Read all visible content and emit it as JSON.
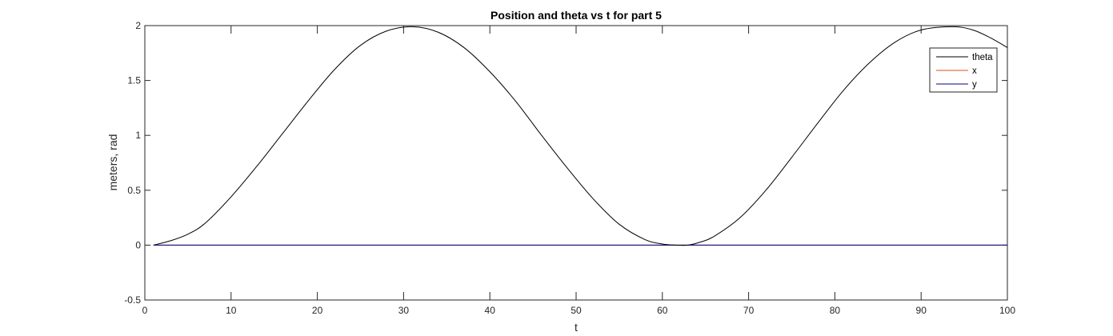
{
  "chart_data": {
    "type": "line",
    "title": "Position and theta vs t for part 5",
    "xlabel": "t",
    "ylabel": "meters, rad",
    "xlim": [
      0,
      100
    ],
    "ylim": [
      -0.5,
      2
    ],
    "xticks": [
      0,
      10,
      20,
      30,
      40,
      50,
      60,
      70,
      80,
      90,
      100
    ],
    "xtick_labels": [
      "0",
      "10",
      "20",
      "30",
      "40",
      "50",
      "60",
      "70",
      "80",
      "90",
      "100"
    ],
    "yticks": [
      -0.5,
      0,
      0.5,
      1,
      1.5,
      2
    ],
    "ytick_labels": [
      "-0.5",
      "0",
      "0.5",
      "1",
      "1.5",
      "2"
    ],
    "grid": false,
    "legend_position": "top-right",
    "series": [
      {
        "name": "theta",
        "color": "#000000",
        "x": [
          1,
          3,
          5,
          7,
          10,
          13,
          16,
          19,
          22,
          25,
          28,
          31,
          34,
          37,
          40,
          43,
          46,
          49,
          52,
          55,
          58,
          60,
          61.5,
          63,
          64.5,
          66,
          69,
          72,
          75,
          78,
          81,
          84,
          87,
          90,
          93.7,
          96,
          98,
          100
        ],
        "y": [
          0.0,
          0.04,
          0.1,
          0.2,
          0.44,
          0.72,
          1.02,
          1.32,
          1.6,
          1.82,
          1.95,
          1.99,
          1.94,
          1.8,
          1.58,
          1.31,
          1.0,
          0.7,
          0.42,
          0.19,
          0.05,
          0.01,
          0.0,
          0.0,
          0.03,
          0.08,
          0.25,
          0.5,
          0.8,
          1.11,
          1.41,
          1.66,
          1.85,
          1.96,
          1.99,
          1.96,
          1.89,
          1.8
        ]
      },
      {
        "name": "x",
        "color": "#d95319",
        "x": [
          1,
          100
        ],
        "y": [
          0,
          0
        ]
      },
      {
        "name": "y",
        "color": "#00008b",
        "x": [
          1,
          100
        ],
        "y": [
          0,
          0
        ]
      }
    ]
  }
}
